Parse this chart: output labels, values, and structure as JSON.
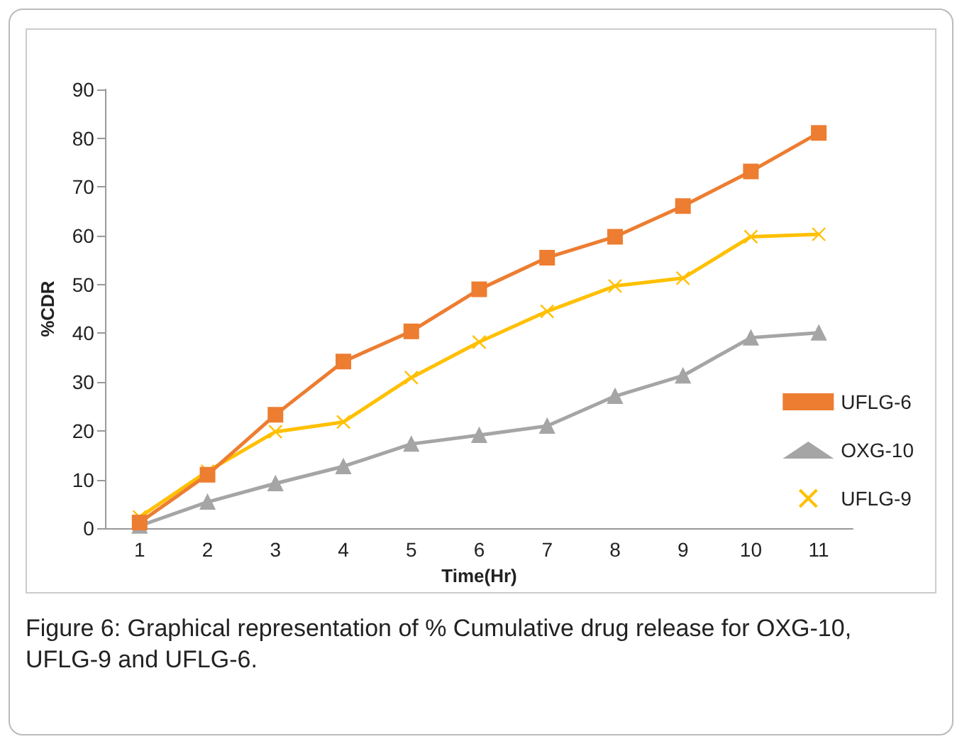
{
  "chart_data": {
    "type": "line",
    "xlabel": "Time(Hr)",
    "ylabel": "%CDR",
    "categories": [
      "1",
      "2",
      "3",
      "4",
      "5",
      "6",
      "7",
      "8",
      "9",
      "10",
      "11"
    ],
    "series": [
      {
        "name": "UFLG-6",
        "color": "#ed7d31",
        "marker": "square",
        "values": [
          1.2,
          11,
          23.3,
          34.2,
          40.4,
          49,
          55.5,
          59.8,
          66.1,
          73.2,
          81.1
        ]
      },
      {
        "name": "OXG-10",
        "color": "#a5a5a5",
        "marker": "triangle",
        "values": [
          0.5,
          5.4,
          9.2,
          12.7,
          17.3,
          19.1,
          21,
          27.1,
          31.3,
          39.1,
          40.1
        ]
      },
      {
        "name": "UFLG-9",
        "color": "#ffc000",
        "marker": "cross",
        "values": [
          2.3,
          11.7,
          19.8,
          21.8,
          30.9,
          38.2,
          44.5,
          49.7,
          51.3,
          59.8,
          60.3
        ]
      }
    ],
    "ylim": [
      0,
      90
    ],
    "yticks": [
      0,
      10,
      20,
      30,
      40,
      50,
      60,
      70,
      80,
      90
    ],
    "grid": false,
    "legend": "right",
    "line_style": "solid",
    "annotations": [
      "Figure 6: Graphical representation of % Cumulative drug release for OXG-10, UFLG-9 and UFLG-6."
    ]
  }
}
